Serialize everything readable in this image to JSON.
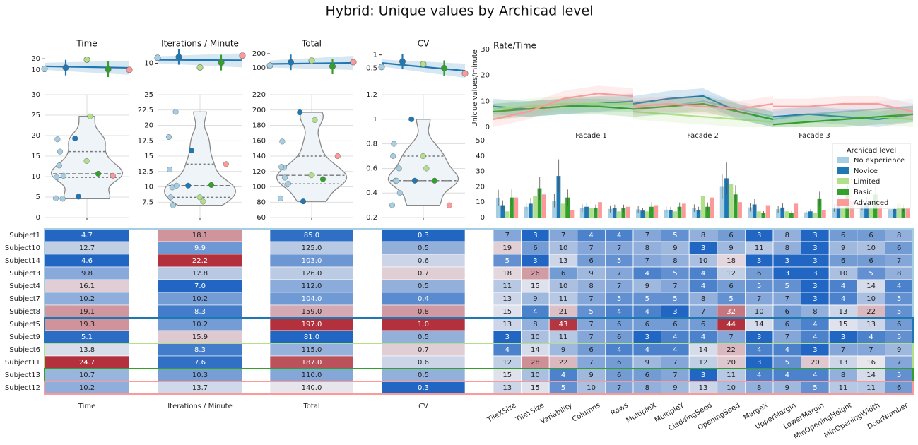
{
  "title": "Hybrid: Unique values by Archicad level",
  "colors": {
    "No experience": "#a6cee3",
    "Novice": "#1f78b4",
    "Limited": "#b2df8a",
    "Basic": "#33a02c",
    "Advanced": "#fb9a99"
  },
  "levels": [
    "No experience",
    "Novice",
    "Limited",
    "Basic",
    "Advanced"
  ],
  "subjects": [
    {
      "name": "Subject1",
      "level": "No experience"
    },
    {
      "name": "Subject10",
      "level": "No experience"
    },
    {
      "name": "Subject14",
      "level": "No experience"
    },
    {
      "name": "Subject3",
      "level": "No experience"
    },
    {
      "name": "Subject4",
      "level": "No experience"
    },
    {
      "name": "Subject7",
      "level": "No experience"
    },
    {
      "name": "Subject8",
      "level": "No experience"
    },
    {
      "name": "Subject5",
      "level": "Novice"
    },
    {
      "name": "Subject9",
      "level": "Novice"
    },
    {
      "name": "Subject6",
      "level": "Limited"
    },
    {
      "name": "Subject11",
      "level": "Limited"
    },
    {
      "name": "Subject13",
      "level": "Basic"
    },
    {
      "name": "Subject12",
      "level": "Advanced"
    }
  ],
  "chart_data": [
    {
      "type": "scatter",
      "panel": "metric",
      "title": "Time",
      "violin_ticks": [
        0,
        5,
        10,
        15,
        20,
        25,
        30
      ],
      "violin_ylim": [
        0,
        30
      ],
      "top_ticks": [
        10,
        20
      ],
      "top_ylim": [
        7,
        27
      ],
      "values": [
        4.7,
        12.7,
        4.6,
        9.8,
        16.1,
        10.2,
        19.1,
        19.3,
        5.1,
        13.8,
        24.7,
        10.7,
        10.2
      ],
      "table_format": 1
    },
    {
      "type": "scatter",
      "panel": "metric",
      "title": "Iterations / Minute",
      "violin_ticks": [
        7.5,
        10.0,
        12.5,
        15.0,
        17.5,
        20.0,
        22.5,
        25.0
      ],
      "violin_ylim": [
        5,
        25
      ],
      "top_ticks": [
        10
      ],
      "top_ylim": [
        5,
        16
      ],
      "values": [
        18.1,
        9.9,
        22.2,
        12.8,
        7.0,
        10.2,
        8.3,
        10.2,
        15.9,
        8.3,
        7.6,
        10.3,
        13.7
      ],
      "table_format": 1
    },
    {
      "type": "scatter",
      "panel": "metric",
      "title": "Total",
      "violin_ticks": [
        60,
        80,
        100,
        120,
        140,
        160,
        180,
        200,
        220
      ],
      "violin_ylim": [
        60,
        220
      ],
      "top_ticks": [
        100,
        200
      ],
      "top_ylim": [
        60,
        220
      ],
      "values": [
        85.0,
        125.0,
        103.0,
        126.0,
        112.0,
        104.0,
        159.0,
        197.0,
        81.0,
        115.0,
        187.0,
        110.0,
        140.0
      ],
      "table_format": 1
    },
    {
      "type": "scatter",
      "panel": "metric",
      "title": "CV",
      "violin_ticks": [
        0.2,
        0.4,
        0.6,
        0.8,
        1.0,
        1.2
      ],
      "violin_ylim": [
        0.2,
        1.2
      ],
      "top_ticks": [
        0.5,
        1
      ],
      "top_ylim": [
        0.3,
        1.15
      ],
      "values": [
        0.3,
        0.5,
        0.6,
        0.7,
        0.5,
        0.4,
        0.8,
        1.0,
        0.5,
        0.7,
        0.6,
        0.5,
        0.3
      ],
      "table_format": 1
    },
    {
      "type": "line",
      "panel": "rate-time",
      "title": "Rate/Time",
      "ylabel": "Unique values/minute",
      "ylim": [
        0,
        30
      ],
      "yticks": [
        0,
        10,
        20,
        30
      ],
      "facet_labels": [
        "Facade 1",
        "Facade 2",
        "Facade 3"
      ]
    },
    {
      "type": "bar",
      "panel": "parameter-bars",
      "ylim": [
        0,
        50
      ],
      "yticks": [
        0,
        10,
        20,
        30,
        40,
        50
      ],
      "legend_title": "Archicad level",
      "legend_position": "top-right",
      "categories": [
        "TileXSize",
        "TileYSize",
        "Variability",
        "Columns",
        "Rows",
        "MultipleX",
        "MultipleY",
        "CladdingSeed",
        "OpeningSeed",
        "MargeX",
        "UpperMargin",
        "LowerMargin",
        "MinOpeningHeight",
        "MinOpeningWidth",
        "DoorNumber"
      ],
      "series": [
        {
          "name": "No experience",
          "values": [
            12.9,
            7.0,
            11.0,
            6.1,
            5.6,
            5.3,
            5.1,
            6.1,
            20.0,
            6.6,
            5.4,
            3.4,
            6.3,
            7.6,
            5.4
          ]
        },
        {
          "name": "Novice",
          "values": [
            8.0,
            9.0,
            27.0,
            7.0,
            6.0,
            4.5,
            5.0,
            5.0,
            25.5,
            8.5,
            6.5,
            4.0,
            9.5,
            9.5,
            5.5
          ]
        },
        {
          "name": "Limited",
          "values": [
            4.0,
            14.0,
            9.0,
            6.0,
            4.0,
            4.0,
            4.0,
            14.0,
            22.0,
            4.0,
            4.0,
            3.0,
            7.0,
            7.0,
            9.0
          ]
        },
        {
          "name": "Basic",
          "values": [
            13.0,
            19.0,
            13.0,
            6.0,
            6.0,
            7.0,
            7.0,
            7.0,
            15.0,
            3.0,
            3.0,
            12.0,
            15.0,
            15.0,
            6.0
          ]
        },
        {
          "name": "Advanced",
          "values": [
            13.0,
            15.0,
            5.0,
            10.0,
            7.0,
            8.0,
            9.0,
            13.0,
            10.0,
            8.0,
            9.0,
            5.0,
            11.0,
            11.0,
            6.0
          ]
        }
      ],
      "matrix": [
        [
          7,
          3,
          7,
          4,
          4,
          7,
          5,
          8,
          6,
          3,
          8,
          3,
          6,
          6,
          8
        ],
        [
          19,
          6,
          10,
          7,
          7,
          8,
          9,
          3,
          9,
          11,
          8,
          3,
          9,
          10,
          6
        ],
        [
          5,
          3,
          13,
          6,
          5,
          7,
          8,
          10,
          18,
          3,
          3,
          3,
          6,
          6,
          7
        ],
        [
          18,
          26,
          6,
          9,
          7,
          4,
          5,
          4,
          12,
          6,
          3,
          3,
          10,
          5,
          8
        ],
        [
          11,
          15,
          10,
          8,
          7,
          9,
          7,
          4,
          6,
          5,
          5,
          3,
          4,
          14,
          4
        ],
        [
          13,
          9,
          11,
          7,
          5,
          5,
          5,
          8,
          5,
          7,
          7,
          3,
          4,
          10,
          5
        ],
        [
          15,
          4,
          21,
          5,
          4,
          4,
          3,
          7,
          32,
          10,
          6,
          8,
          13,
          22,
          5
        ],
        [
          13,
          8,
          43,
          7,
          6,
          6,
          6,
          6,
          44,
          14,
          6,
          4,
          15,
          13,
          6
        ],
        [
          3,
          10,
          11,
          7,
          6,
          3,
          4,
          4,
          7,
          3,
          7,
          4,
          3,
          4,
          5
        ],
        [
          4,
          14,
          9,
          6,
          4,
          4,
          4,
          14,
          22,
          4,
          4,
          3,
          7,
          7,
          9
        ],
        [
          12,
          28,
          22,
          7,
          6,
          9,
          7,
          12,
          20,
          3,
          5,
          20,
          13,
          16,
          7
        ],
        [
          15,
          10,
          4,
          9,
          6,
          6,
          7,
          3,
          11,
          4,
          4,
          4,
          8,
          14,
          5
        ],
        [
          13,
          15,
          5,
          10,
          7,
          8,
          9,
          13,
          10,
          8,
          9,
          5,
          11,
          11,
          6
        ]
      ]
    }
  ]
}
